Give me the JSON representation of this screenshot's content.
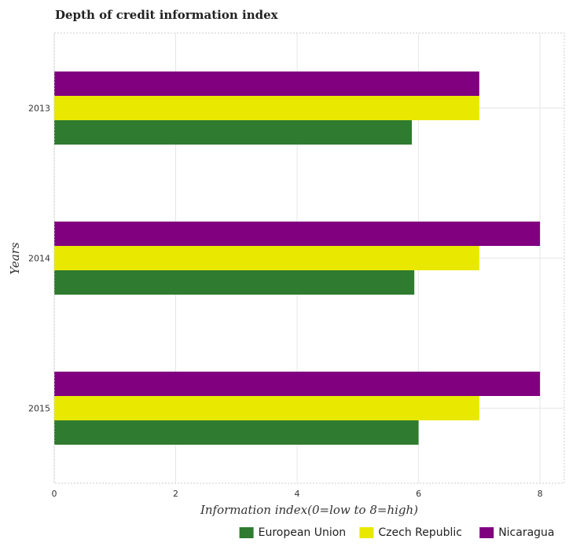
{
  "chart_data": {
    "type": "bar",
    "orientation": "horizontal",
    "title": "Depth of credit information index",
    "xlabel": "Information index(0=low to 8=high)",
    "ylabel": "Years",
    "categories": [
      "2013",
      "2014",
      "2015"
    ],
    "xlim": [
      0,
      8.4
    ],
    "xticks": [
      0,
      2,
      4,
      6,
      8
    ],
    "xtick_labels": [
      "0",
      "2",
      "4",
      "6",
      "8"
    ],
    "grid": true,
    "legend_position": "bottom-right",
    "series": [
      {
        "name": "European Union",
        "color": "#2f7b2f",
        "values": [
          5.89,
          5.93,
          6.0
        ]
      },
      {
        "name": "Czech Republic",
        "color": "#e8e800",
        "values": [
          7,
          7,
          7
        ]
      },
      {
        "name": "Nicaragua",
        "color": "#800080",
        "values": [
          7,
          8,
          8
        ]
      }
    ]
  }
}
